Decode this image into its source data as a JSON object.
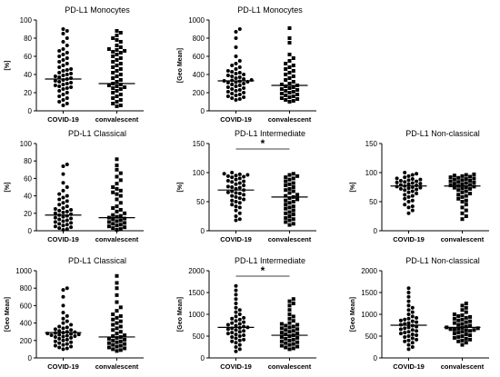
{
  "chart_data": [
    {
      "id": "p1",
      "type": "scatter",
      "title": "PD-L1 Monocytes",
      "ylabel": "[%]",
      "categories": [
        "COVID-19",
        "convalescent"
      ],
      "ylim": [
        0,
        100
      ],
      "yticks": [
        0,
        20,
        40,
        60,
        80,
        100
      ],
      "medians": [
        35,
        30
      ],
      "significance": "",
      "series": [
        {
          "marker": "circle",
          "values": [
            90,
            88,
            85,
            80,
            76,
            72,
            68,
            66,
            64,
            62,
            60,
            58,
            56,
            54,
            52,
            50,
            48,
            46,
            45,
            44,
            42,
            41,
            40,
            39,
            38,
            37,
            36,
            35,
            34,
            33,
            32,
            31,
            30,
            29,
            28,
            27,
            26,
            25,
            24,
            22,
            20,
            18,
            16,
            14,
            12,
            10,
            8,
            6
          ]
        },
        {
          "marker": "square",
          "values": [
            88,
            86,
            83,
            80,
            78,
            76,
            72,
            70,
            68,
            67,
            66,
            65,
            64,
            62,
            60,
            58,
            56,
            54,
            52,
            50,
            48,
            46,
            44,
            42,
            40,
            38,
            36,
            34,
            32,
            30,
            29,
            28,
            27,
            26,
            25,
            24,
            22,
            20,
            18,
            16,
            14,
            12,
            10,
            8,
            6,
            5
          ]
        }
      ]
    },
    {
      "id": "p2",
      "type": "scatter",
      "title": "PD-L1 Monocytes",
      "ylabel": "[Geo Mean]",
      "categories": [
        "COVID-19",
        "convalescent"
      ],
      "ylim": [
        0,
        1000
      ],
      "yticks": [
        0,
        200,
        400,
        600,
        800,
        1000
      ],
      "medians": [
        330,
        280
      ],
      "significance": "",
      "series": [
        {
          "marker": "circle",
          "values": [
            900,
            870,
            800,
            700,
            600,
            550,
            520,
            500,
            480,
            460,
            440,
            430,
            420,
            410,
            400,
            390,
            380,
            370,
            360,
            350,
            340,
            335,
            330,
            325,
            320,
            315,
            310,
            300,
            290,
            280,
            270,
            260,
            250,
            240,
            230,
            220,
            210,
            200,
            190,
            180,
            170,
            160,
            150,
            140,
            130,
            120
          ]
        },
        {
          "marker": "square",
          "values": [
            910,
            800,
            750,
            620,
            580,
            550,
            520,
            500,
            480,
            460,
            440,
            420,
            400,
            380,
            360,
            340,
            320,
            300,
            290,
            280,
            270,
            260,
            250,
            240,
            230,
            220,
            210,
            200,
            190,
            180,
            170,
            160,
            150,
            140,
            130,
            120,
            110,
            100
          ]
        }
      ]
    },
    {
      "id": "p3",
      "type": "scatter",
      "title": "PD-L1 Classical",
      "ylabel": "[%]",
      "categories": [
        "COVID-19",
        "convalescent"
      ],
      "ylim": [
        0,
        100
      ],
      "yticks": [
        0,
        20,
        40,
        60,
        80,
        100
      ],
      "medians": [
        18,
        15
      ],
      "significance": "",
      "series": [
        {
          "marker": "circle",
          "values": [
            76,
            74,
            65,
            55,
            50,
            46,
            42,
            40,
            38,
            36,
            34,
            32,
            30,
            28,
            26,
            25,
            24,
            23,
            22,
            21,
            20,
            19,
            18,
            17,
            16,
            15,
            14,
            13,
            12,
            11,
            10,
            9,
            8,
            7,
            6,
            5,
            4,
            3,
            2,
            1
          ]
        },
        {
          "marker": "square",
          "values": [
            82,
            75,
            70,
            66,
            62,
            58,
            54,
            50,
            48,
            46,
            44,
            42,
            40,
            36,
            32,
            28,
            26,
            24,
            22,
            20,
            18,
            17,
            16,
            15,
            14,
            13,
            12,
            11,
            10,
            9,
            8,
            7,
            6,
            5,
            4,
            3,
            2,
            1
          ]
        }
      ]
    },
    {
      "id": "p4",
      "type": "scatter",
      "title": "PD-L1 Intermediate",
      "ylabel": "[%]",
      "categories": [
        "COVID-19",
        "convalescent"
      ],
      "ylim": [
        0,
        150
      ],
      "yticks": [
        0,
        50,
        100,
        150
      ],
      "medians": [
        70,
        58
      ],
      "significance": "*",
      "series": [
        {
          "marker": "circle",
          "values": [
            100,
            98,
            97,
            96,
            95,
            94,
            93,
            92,
            90,
            88,
            86,
            85,
            84,
            82,
            80,
            78,
            76,
            75,
            74,
            72,
            70,
            68,
            66,
            65,
            64,
            62,
            60,
            58,
            56,
            54,
            52,
            50,
            48,
            45,
            42,
            40,
            35,
            30,
            25,
            20,
            18
          ]
        },
        {
          "marker": "square",
          "values": [
            98,
            96,
            94,
            92,
            90,
            88,
            85,
            82,
            80,
            78,
            75,
            72,
            70,
            68,
            65,
            62,
            60,
            58,
            56,
            54,
            52,
            50,
            48,
            45,
            42,
            40,
            38,
            35,
            32,
            30,
            28,
            25,
            22,
            20,
            18,
            15,
            12,
            10
          ]
        }
      ]
    },
    {
      "id": "p5",
      "type": "scatter",
      "title": "PD-L1 Non-classical",
      "ylabel": "[%]",
      "categories": [
        "COVID-19",
        "convalescent"
      ],
      "ylim": [
        0,
        150
      ],
      "yticks": [
        0,
        50,
        100,
        150
      ],
      "medians": [
        77,
        77
      ],
      "significance": "",
      "series": [
        {
          "marker": "circle",
          "values": [
            100,
            98,
            96,
            94,
            92,
            90,
            89,
            88,
            87,
            86,
            85,
            84,
            83,
            82,
            81,
            80,
            79,
            78,
            77,
            76,
            75,
            74,
            73,
            72,
            71,
            70,
            68,
            66,
            64,
            62,
            60,
            58,
            55,
            52,
            50,
            45,
            42,
            40,
            35,
            30
          ]
        },
        {
          "marker": "square",
          "values": [
            97,
            96,
            95,
            94,
            93,
            92,
            91,
            90,
            89,
            88,
            87,
            86,
            85,
            84,
            83,
            82,
            81,
            80,
            79,
            78,
            77,
            76,
            75,
            74,
            73,
            72,
            70,
            68,
            66,
            64,
            62,
            60,
            58,
            55,
            52,
            50,
            45,
            40,
            35,
            30,
            25,
            20
          ]
        }
      ]
    },
    {
      "id": "p6",
      "type": "scatter",
      "title": "PD-L1 Classical",
      "ylabel": "[Geo Mean]",
      "categories": [
        "COVID-19",
        "convalescent"
      ],
      "ylim": [
        0,
        1000
      ],
      "yticks": [
        0,
        200,
        400,
        600,
        800,
        1000
      ],
      "medians": [
        290,
        240
      ],
      "significance": "",
      "series": [
        {
          "marker": "circle",
          "values": [
            800,
            780,
            700,
            600,
            520,
            480,
            450,
            420,
            400,
            380,
            360,
            350,
            340,
            330,
            320,
            310,
            300,
            295,
            290,
            285,
            280,
            275,
            270,
            265,
            260,
            255,
            250,
            245,
            240,
            230,
            220,
            210,
            200,
            190,
            180,
            170,
            160,
            150,
            140,
            130,
            120,
            110,
            100
          ]
        },
        {
          "marker": "square",
          "values": [
            940,
            860,
            800,
            720,
            640,
            580,
            540,
            500,
            480,
            460,
            440,
            420,
            400,
            380,
            360,
            340,
            320,
            300,
            280,
            260,
            250,
            240,
            230,
            220,
            210,
            200,
            190,
            180,
            170,
            160,
            150,
            140,
            130,
            120,
            110,
            100,
            90,
            80
          ]
        }
      ]
    },
    {
      "id": "p7",
      "type": "scatter",
      "title": "PD-L1 Intermediate",
      "ylabel": "[Geo Mean]",
      "categories": [
        "COVID-19",
        "convalescent"
      ],
      "ylim": [
        0,
        2000
      ],
      "yticks": [
        0,
        500,
        1000,
        1500,
        2000
      ],
      "medians": [
        700,
        520
      ],
      "significance": "*",
      "series": [
        {
          "marker": "circle",
          "values": [
            1650,
            1550,
            1450,
            1350,
            1250,
            1150,
            1100,
            1050,
            1000,
            950,
            920,
            900,
            880,
            850,
            820,
            800,
            780,
            760,
            740,
            720,
            700,
            690,
            680,
            660,
            640,
            620,
            600,
            580,
            560,
            540,
            520,
            500,
            480,
            450,
            420,
            400,
            380,
            350,
            300,
            250,
            200,
            150
          ]
        },
        {
          "marker": "square",
          "values": [
            1350,
            1300,
            1250,
            1200,
            1100,
            1000,
            950,
            900,
            850,
            800,
            780,
            760,
            740,
            720,
            700,
            680,
            660,
            640,
            620,
            600,
            580,
            560,
            540,
            520,
            500,
            480,
            460,
            440,
            420,
            400,
            380,
            360,
            340,
            320,
            300,
            280,
            260,
            240,
            220,
            200
          ]
        }
      ]
    },
    {
      "id": "p8",
      "type": "scatter",
      "title": "PD-L1 Non-classical",
      "ylabel": "[Geo Mean]",
      "categories": [
        "COVID-19",
        "convalescent"
      ],
      "ylim": [
        0,
        2000
      ],
      "yticks": [
        0,
        500,
        1000,
        1500,
        2000
      ],
      "medians": [
        750,
        700
      ],
      "significance": "",
      "series": [
        {
          "marker": "circle",
          "values": [
            1600,
            1500,
            1400,
            1300,
            1200,
            1150,
            1100,
            1050,
            1000,
            950,
            920,
            900,
            880,
            860,
            840,
            820,
            800,
            780,
            760,
            740,
            720,
            700,
            680,
            660,
            640,
            620,
            600,
            580,
            560,
            540,
            520,
            500,
            480,
            450,
            420,
            400,
            380,
            350,
            300,
            250,
            200
          ]
        },
        {
          "marker": "square",
          "values": [
            1250,
            1200,
            1150,
            1100,
            1050,
            1000,
            980,
            960,
            940,
            920,
            900,
            880,
            860,
            840,
            820,
            800,
            780,
            760,
            740,
            720,
            700,
            690,
            680,
            670,
            660,
            650,
            640,
            630,
            620,
            600,
            580,
            560,
            540,
            520,
            500,
            480,
            460,
            440,
            420,
            400,
            380,
            350,
            300
          ]
        }
      ]
    }
  ]
}
